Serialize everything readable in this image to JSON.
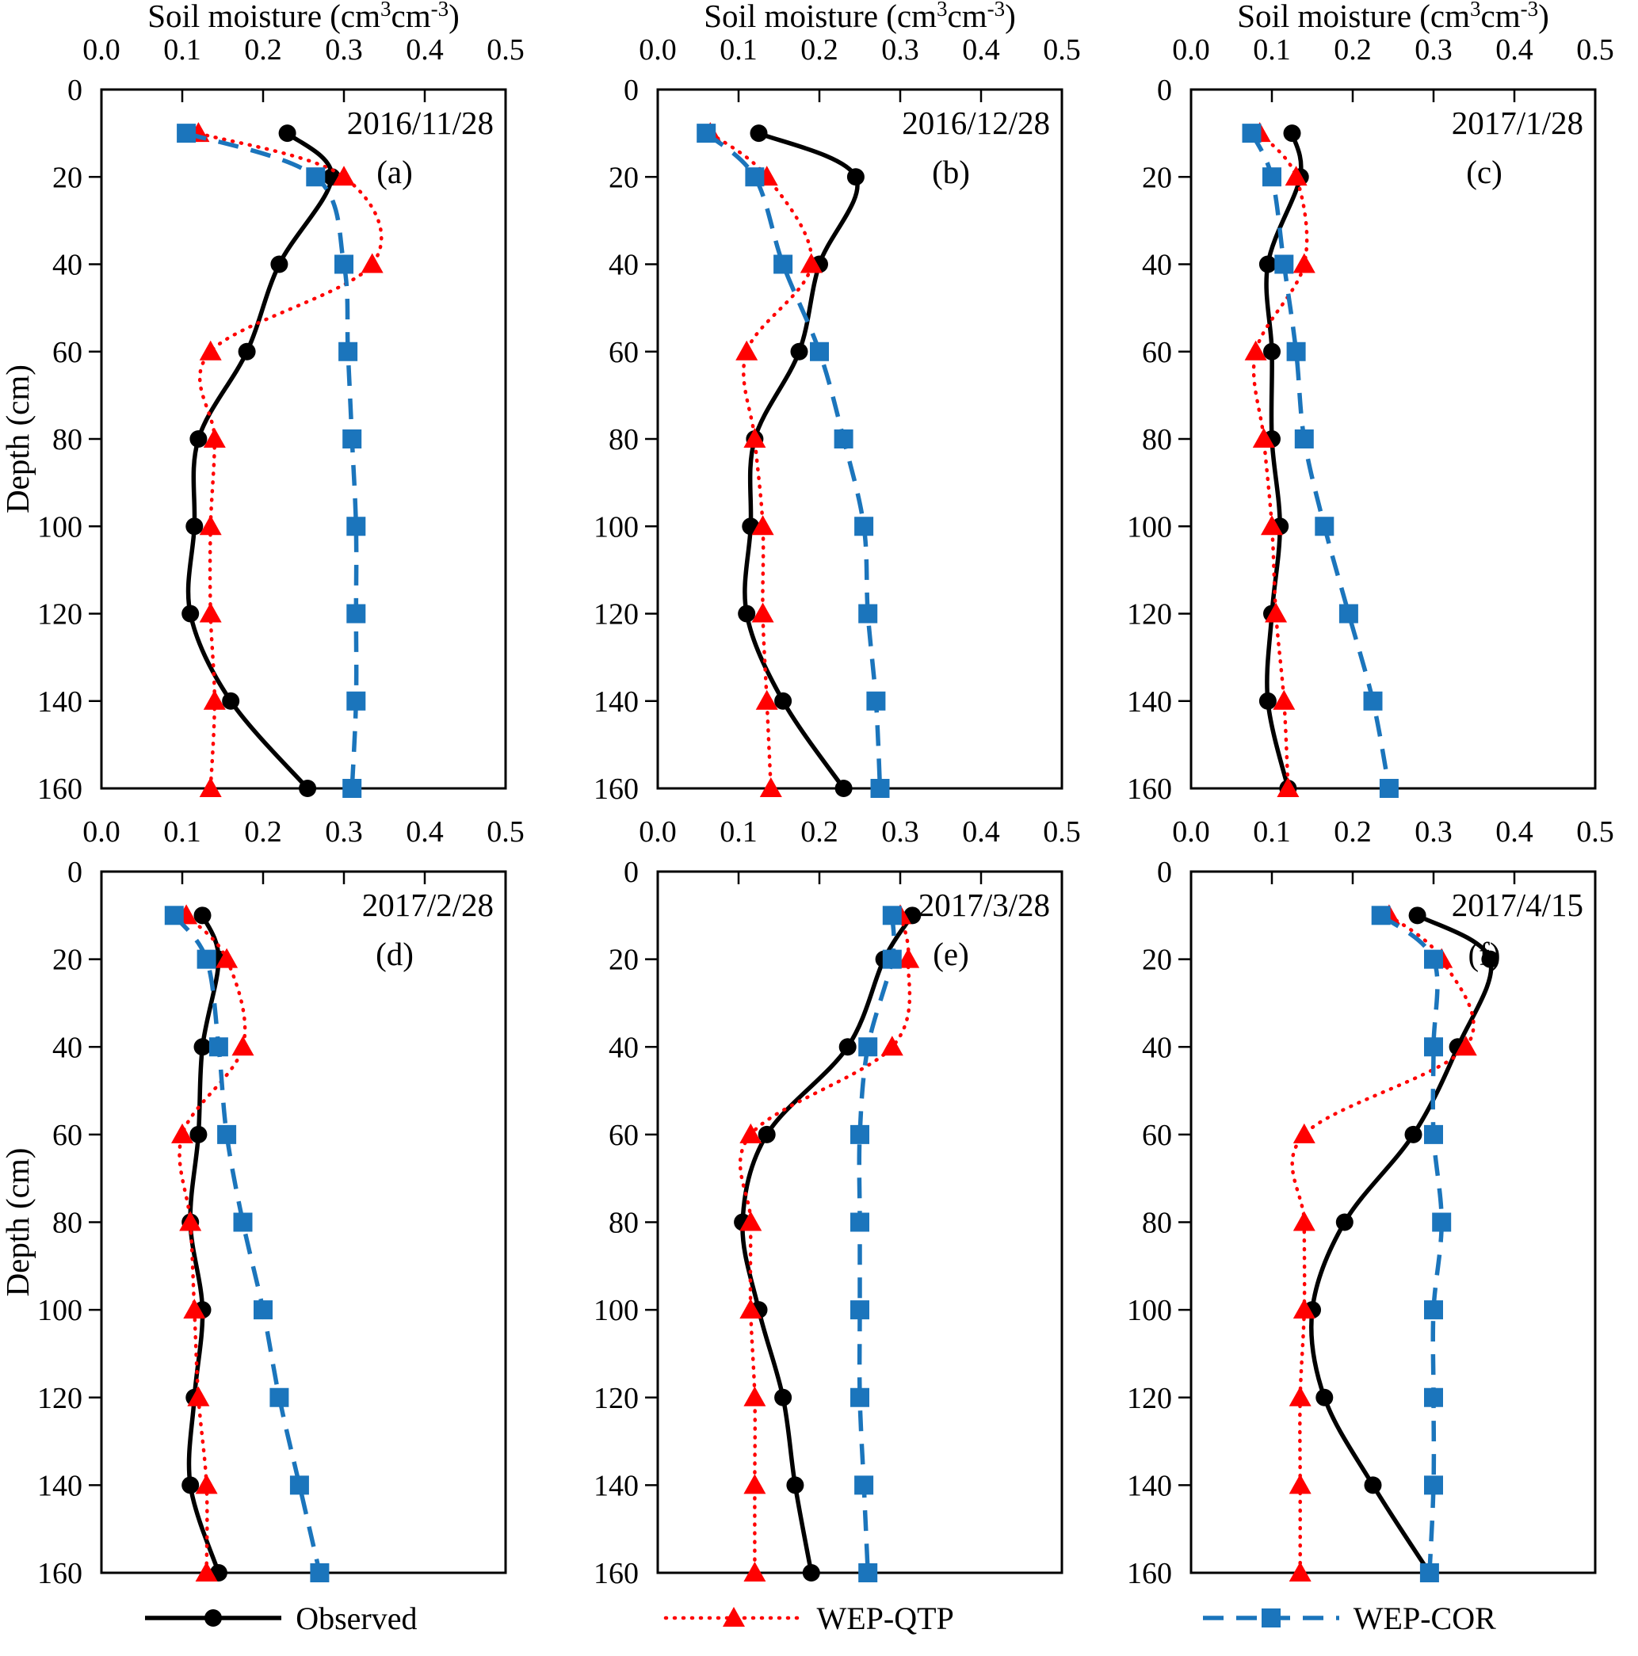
{
  "axes": {
    "x_title_parts": [
      "Soil moisture  (cm",
      "3",
      "cm",
      "-3",
      ")"
    ],
    "x_ticks": [
      "0.0",
      "0.1",
      "0.2",
      "0.3",
      "0.4",
      "0.5"
    ],
    "x_range": [
      0,
      0.5
    ],
    "y_title": "Depth  (cm)",
    "y_ticks": [
      "0",
      "20",
      "40",
      "60",
      "80",
      "100",
      "120",
      "140",
      "160"
    ],
    "y_range": [
      0,
      160
    ],
    "grid": "off"
  },
  "series_styles": {
    "observed": {
      "color": "#000000",
      "marker": "circle",
      "line": "solid"
    },
    "wep_qtp": {
      "color": "#ff0000",
      "marker": "triangle",
      "line": "dotted"
    },
    "wep_cor": {
      "color": "#1b75bc",
      "marker": "square",
      "line": "dashed"
    }
  },
  "legend": {
    "position": "bottom-center",
    "entries": [
      {
        "label": "Observed",
        "series": "observed"
      },
      {
        "label": "WEP-QTP",
        "series": "wep_qtp"
      },
      {
        "label": "WEP-COR",
        "series": "wep_cor"
      }
    ]
  },
  "chart_data": [
    {
      "type": "line",
      "date": "2016/11/28",
      "letter": "(a)",
      "depths": [
        10,
        20,
        40,
        60,
        80,
        100,
        120,
        140,
        160
      ],
      "series": [
        {
          "name": "Observed",
          "key": "observed",
          "values": [
            0.23,
            0.285,
            0.22,
            0.18,
            0.12,
            0.115,
            0.11,
            0.16,
            0.255
          ]
        },
        {
          "name": "WEP-QTP",
          "key": "wep_qtp",
          "values": [
            0.12,
            0.3,
            0.335,
            0.135,
            0.14,
            0.135,
            0.135,
            0.14,
            0.135
          ]
        },
        {
          "name": "WEP-COR",
          "key": "wep_cor",
          "values": [
            0.105,
            0.265,
            0.3,
            0.305,
            0.31,
            0.315,
            0.315,
            0.315,
            0.31
          ]
        }
      ]
    },
    {
      "type": "line",
      "date": "2016/12/28",
      "letter": "(b)",
      "depths": [
        10,
        20,
        40,
        60,
        80,
        100,
        120,
        140,
        160
      ],
      "series": [
        {
          "name": "Observed",
          "key": "observed",
          "values": [
            0.125,
            0.245,
            0.2,
            0.175,
            0.12,
            0.115,
            0.11,
            0.155,
            0.23
          ]
        },
        {
          "name": "WEP-QTP",
          "key": "wep_qtp",
          "values": [
            0.065,
            0.135,
            0.19,
            0.11,
            0.12,
            0.13,
            0.13,
            0.135,
            0.14
          ]
        },
        {
          "name": "WEP-COR",
          "key": "wep_cor",
          "values": [
            0.06,
            0.12,
            0.155,
            0.2,
            0.23,
            0.255,
            0.26,
            0.27,
            0.275
          ]
        }
      ]
    },
    {
      "type": "line",
      "date": "2017/1/28",
      "letter": "(c)",
      "depths": [
        10,
        20,
        40,
        60,
        80,
        100,
        120,
        140,
        160
      ],
      "series": [
        {
          "name": "Observed",
          "key": "observed",
          "values": [
            0.125,
            0.135,
            0.095,
            0.1,
            0.1,
            0.11,
            0.1,
            0.095,
            0.12
          ]
        },
        {
          "name": "WEP-QTP",
          "key": "wep_qtp",
          "values": [
            0.085,
            0.13,
            0.14,
            0.08,
            0.09,
            0.1,
            0.105,
            0.115,
            0.12
          ]
        },
        {
          "name": "WEP-COR",
          "key": "wep_cor",
          "values": [
            0.075,
            0.1,
            0.115,
            0.13,
            0.14,
            0.165,
            0.195,
            0.225,
            0.245
          ]
        }
      ]
    },
    {
      "type": "line",
      "date": "2017/2/28",
      "letter": "(d)",
      "depths": [
        10,
        20,
        40,
        60,
        80,
        100,
        120,
        140,
        160
      ],
      "series": [
        {
          "name": "Observed",
          "key": "observed",
          "values": [
            0.125,
            0.145,
            0.125,
            0.12,
            0.11,
            0.125,
            0.115,
            0.11,
            0.145
          ]
        },
        {
          "name": "WEP-QTP",
          "key": "wep_qtp",
          "values": [
            0.105,
            0.155,
            0.175,
            0.1,
            0.11,
            0.115,
            0.12,
            0.13,
            0.13
          ]
        },
        {
          "name": "WEP-COR",
          "key": "wep_cor",
          "values": [
            0.09,
            0.13,
            0.145,
            0.155,
            0.175,
            0.2,
            0.22,
            0.245,
            0.27
          ]
        }
      ]
    },
    {
      "type": "line",
      "date": "2017/3/28",
      "letter": "(e)",
      "depths": [
        10,
        20,
        40,
        60,
        80,
        100,
        120,
        140,
        160
      ],
      "series": [
        {
          "name": "Observed",
          "key": "observed",
          "values": [
            0.315,
            0.28,
            0.235,
            0.135,
            0.105,
            0.125,
            0.155,
            0.17,
            0.19
          ]
        },
        {
          "name": "WEP-QTP",
          "key": "wep_qtp",
          "values": [
            0.3,
            0.31,
            0.29,
            0.115,
            0.115,
            0.115,
            0.12,
            0.12,
            0.12
          ]
        },
        {
          "name": "WEP-COR",
          "key": "wep_cor",
          "values": [
            0.29,
            0.29,
            0.26,
            0.25,
            0.25,
            0.25,
            0.25,
            0.255,
            0.26
          ]
        }
      ]
    },
    {
      "type": "line",
      "date": "2017/4/15",
      "letter": "(f)",
      "depths": [
        10,
        20,
        40,
        60,
        80,
        100,
        120,
        140,
        160
      ],
      "series": [
        {
          "name": "Observed",
          "key": "observed",
          "values": [
            0.28,
            0.37,
            0.33,
            0.275,
            0.19,
            0.15,
            0.165,
            0.225,
            0.295
          ]
        },
        {
          "name": "WEP-QTP",
          "key": "wep_qtp",
          "values": [
            0.245,
            0.31,
            0.34,
            0.14,
            0.14,
            0.14,
            0.135,
            0.135,
            0.135
          ]
        },
        {
          "name": "WEP-COR",
          "key": "wep_cor",
          "values": [
            0.235,
            0.3,
            0.3,
            0.3,
            0.31,
            0.3,
            0.3,
            0.3,
            0.295
          ]
        }
      ]
    }
  ]
}
